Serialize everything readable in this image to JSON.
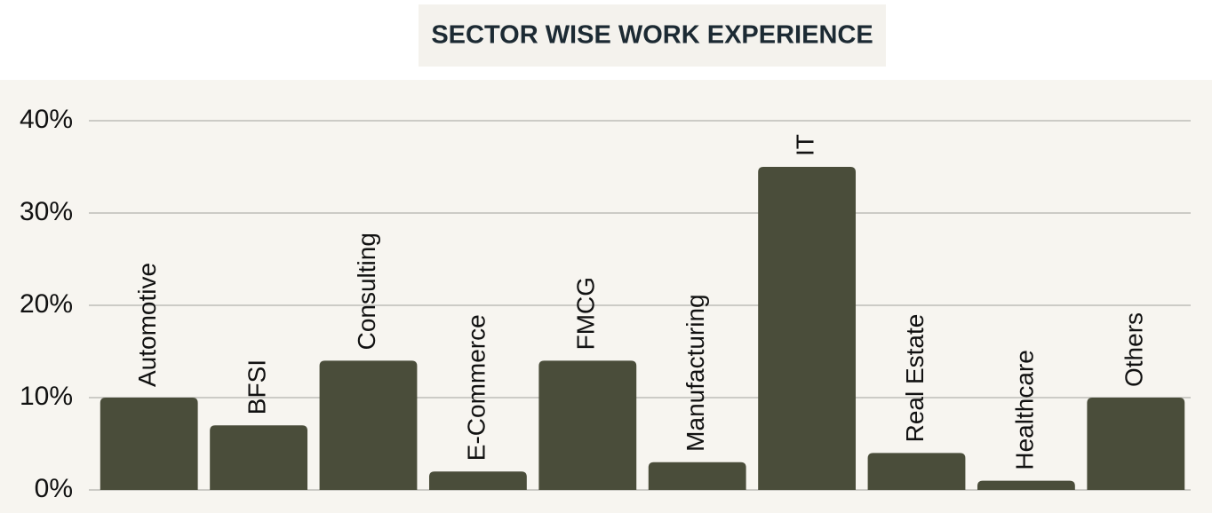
{
  "chart_data": {
    "type": "bar",
    "title": "SECTOR WISE WORK EXPERIENCE",
    "categories": [
      "Automotive",
      "BFSI",
      "Consulting",
      "E-Commerce",
      "FMCG",
      "Manufacturing",
      "IT",
      "Real Estate",
      "Healthcare",
      "Others"
    ],
    "values": [
      10,
      7,
      14,
      2,
      14,
      3,
      35,
      4,
      1,
      10
    ],
    "color": "#4a4d3a",
    "ylim": [
      0,
      40
    ],
    "yticks": [
      {
        "value": 0,
        "label": "0%"
      },
      {
        "value": 10,
        "label": "10%"
      },
      {
        "value": 20,
        "label": "20%"
      },
      {
        "value": 30,
        "label": "30%"
      },
      {
        "value": 40,
        "label": "40%"
      }
    ],
    "grid": true
  }
}
